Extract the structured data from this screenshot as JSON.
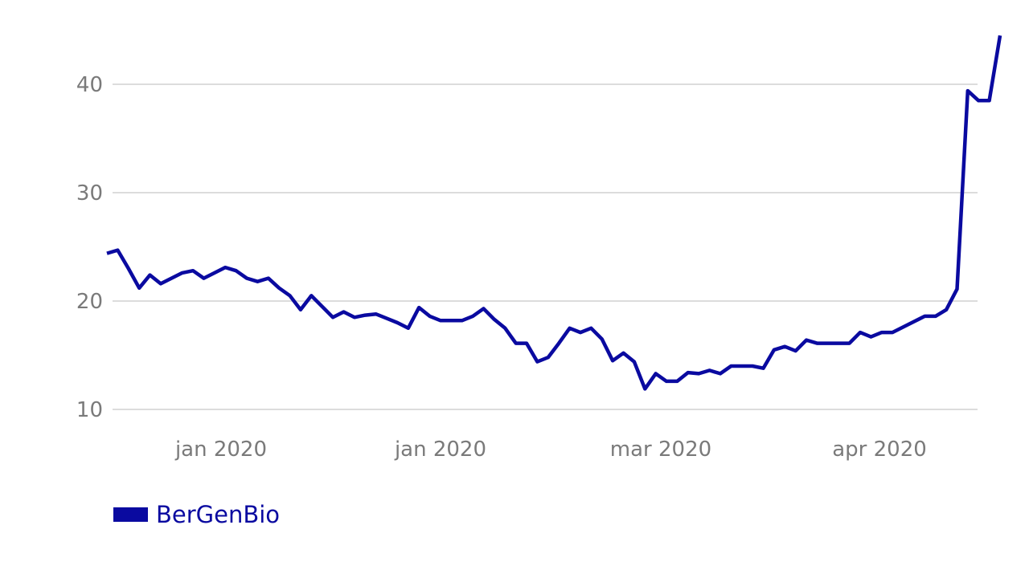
{
  "chart_data": {
    "type": "line",
    "title": "",
    "xlabel": "",
    "ylabel": "",
    "ylim": [
      10,
      45
    ],
    "yticks": [
      10,
      20,
      30,
      40
    ],
    "xtick_labels": [
      "jan 2020",
      "jan 2020",
      "mar 2020",
      "apr 2020"
    ],
    "grid": true,
    "legend_position": "bottom-left",
    "colors": {
      "line": "#0a0aa0",
      "grid": "#dcdcdc",
      "tick_text": "#7a7a7a"
    },
    "series": [
      {
        "name": "BerGenBio",
        "values": [
          24.4,
          24.7,
          23.0,
          21.2,
          22.4,
          21.6,
          22.1,
          22.6,
          22.8,
          22.1,
          22.6,
          23.1,
          22.8,
          22.1,
          21.8,
          22.1,
          21.2,
          20.5,
          19.2,
          20.5,
          19.5,
          18.5,
          19.0,
          18.5,
          18.7,
          18.8,
          18.4,
          18.0,
          17.5,
          19.4,
          18.6,
          18.2,
          18.2,
          18.2,
          18.6,
          19.3,
          18.3,
          17.5,
          16.1,
          16.1,
          14.4,
          14.8,
          16.1,
          17.5,
          17.1,
          17.5,
          16.5,
          14.5,
          15.2,
          14.4,
          11.9,
          13.3,
          12.6,
          12.6,
          13.4,
          13.3,
          13.6,
          13.3,
          14.0,
          14.0,
          14.0,
          13.8,
          15.5,
          15.8,
          15.4,
          16.4,
          16.1,
          16.1,
          16.1,
          16.1,
          17.1,
          16.7,
          17.1,
          17.1,
          17.6,
          18.1,
          18.6,
          18.6,
          19.2,
          21.1,
          39.4,
          38.5,
          38.5,
          44.5
        ]
      }
    ]
  }
}
